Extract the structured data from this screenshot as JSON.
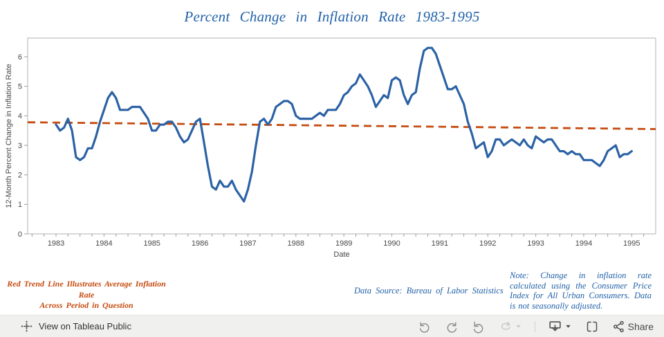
{
  "title": "Percent Change in Inflation Rate 1983-1995",
  "chart_data": {
    "type": "line",
    "title": "Percent Change in Inflation Rate 1983-1995",
    "xlabel": "Date",
    "ylabel": "12-Month Percent Change in Inflation Rate",
    "ylim": [
      0,
      6.6
    ],
    "y_ticks": [
      0,
      1,
      2,
      3,
      4,
      5,
      6
    ],
    "x_ticks": [
      1983,
      1984,
      1985,
      1986,
      1987,
      1988,
      1989,
      1990,
      1991,
      1992,
      1993,
      1994,
      1995
    ],
    "x_start": "1983-01",
    "x_end": "1995-01",
    "frequency": "monthly",
    "grid": false,
    "legend": false,
    "series": [
      {
        "name": "12-Month Percent Change in Inflation Rate",
        "type": "line",
        "color": "#2b62a5",
        "values": [
          3.7,
          3.5,
          3.6,
          3.9,
          3.5,
          2.6,
          2.5,
          2.6,
          2.9,
          2.9,
          3.3,
          3.8,
          4.2,
          4.6,
          4.8,
          4.6,
          4.2,
          4.2,
          4.2,
          4.3,
          4.3,
          4.3,
          4.1,
          3.9,
          3.5,
          3.5,
          3.7,
          3.7,
          3.8,
          3.8,
          3.6,
          3.3,
          3.1,
          3.2,
          3.5,
          3.8,
          3.9,
          3.1,
          2.3,
          1.6,
          1.5,
          1.8,
          1.6,
          1.6,
          1.8,
          1.5,
          1.3,
          1.1,
          1.5,
          2.1,
          3.0,
          3.8,
          3.9,
          3.7,
          3.9,
          4.3,
          4.4,
          4.5,
          4.5,
          4.4,
          4.0,
          3.9,
          3.9,
          3.9,
          3.9,
          4.0,
          4.1,
          4.0,
          4.2,
          4.2,
          4.2,
          4.4,
          4.7,
          4.8,
          5.0,
          5.1,
          5.4,
          5.2,
          5.0,
          4.7,
          4.3,
          4.5,
          4.7,
          4.6,
          5.2,
          5.3,
          5.2,
          4.7,
          4.4,
          4.7,
          4.8,
          5.6,
          6.2,
          6.3,
          6.3,
          6.1,
          5.7,
          5.3,
          4.9,
          4.9,
          5.0,
          4.7,
          4.4,
          3.8,
          3.4,
          2.9,
          3.0,
          3.1,
          2.6,
          2.8,
          3.2,
          3.2,
          3.0,
          3.1,
          3.2,
          3.1,
          3.0,
          3.2,
          3.0,
          2.9,
          3.3,
          3.2,
          3.1,
          3.2,
          3.2,
          3.0,
          2.8,
          2.8,
          2.7,
          2.8,
          2.7,
          2.7,
          2.5,
          2.5,
          2.5,
          2.4,
          2.3,
          2.5,
          2.8,
          2.9,
          3.0,
          2.6,
          2.7,
          2.7,
          2.8
        ]
      },
      {
        "name": "Red Trend Line (Average Inflation Rate)",
        "type": "trendline",
        "color": "#c54b10",
        "style": "dashed",
        "start_value": 3.78,
        "end_value": 3.55
      }
    ]
  },
  "captions": {
    "trend_note": "Red Trend Line Illustrates Average Inflation Rate\nAcross Period in Question",
    "data_source": "Data Source: Bureau of Labor Statistics",
    "methodology_note": "Note: Change in inflation rate calculated using the Consumer Price Index for All Urban Consumers. Data is not seasonally adjusted."
  },
  "toolbar": {
    "view_label": "View on Tableau Public",
    "share_label": "Share",
    "icon_names": [
      "tableau-logo-icon",
      "undo-icon",
      "redo-icon",
      "reset-icon",
      "refresh-icon",
      "caret-down-icon",
      "download-icon",
      "caret-down-icon",
      "fullscreen-icon",
      "share-icon"
    ]
  },
  "colors": {
    "line_blue": "#2b62a5",
    "trend_orange": "#c54b10",
    "title_blue": "#2161a8",
    "caption_orange": "#c54b10",
    "axis_text": "#484848",
    "plot_border": "#b1b1b1",
    "toolbar_bg": "#f0f0ef"
  }
}
